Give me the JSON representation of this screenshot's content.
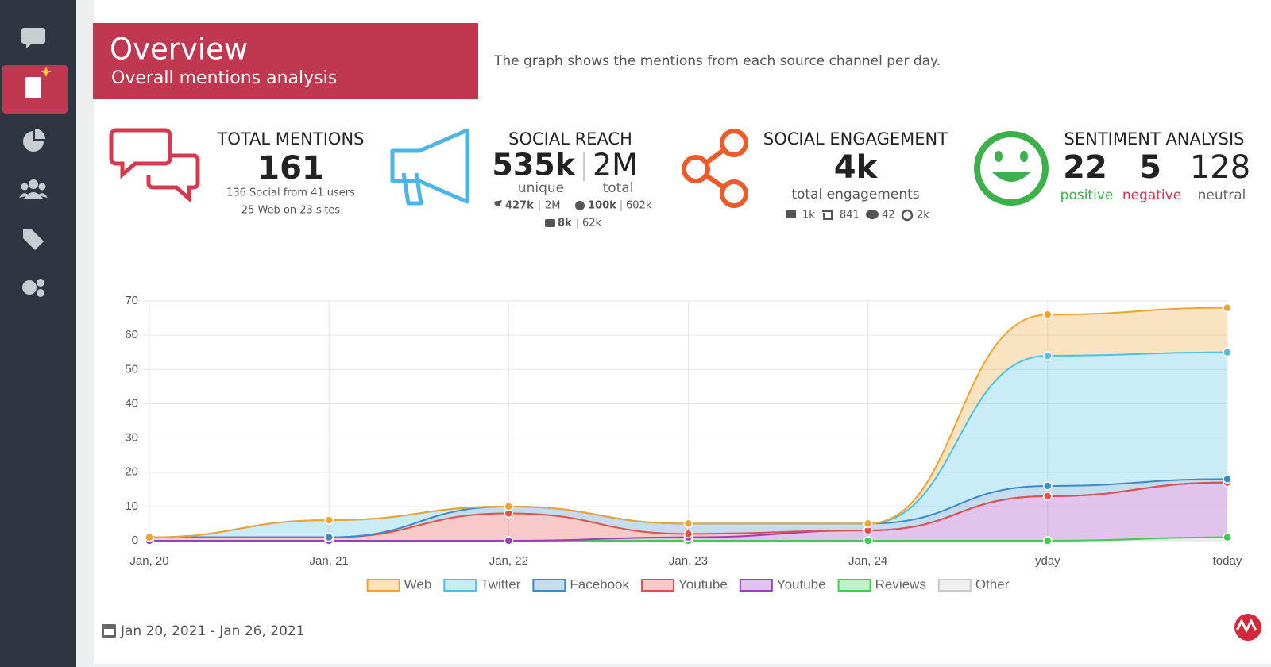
{
  "header": {
    "title": "Overview",
    "subtitle": "Overall mentions analysis",
    "description": "The graph shows the mentions from each source channel per day."
  },
  "kpis": {
    "total_mentions": {
      "title": "TOTAL MENTIONS",
      "value": 161,
      "lines": [
        "136 Social from 41 users",
        "25 Web on 23 sites"
      ]
    },
    "social_reach": {
      "title": "SOCIAL REACH",
      "unique": "535k",
      "unique_label": "unique",
      "total": "2M",
      "total_label": "total",
      "twitter": "427k",
      "twitter_total": "2M",
      "facebook": "100k",
      "facebook_total": "602k",
      "youtube": "8k",
      "youtube_total": "62k"
    },
    "social_engagement": {
      "title": "SOCIAL ENGAGEMENT",
      "value": "4k",
      "label": "total engagements",
      "likes": "1k",
      "shares": 841,
      "comments": 42,
      "views": "2k"
    },
    "sentiment": {
      "title": "SENTIMENT ANALYSIS",
      "positive": 22,
      "positive_label": "positive",
      "negative": 5,
      "negative_label": "negative",
      "neutral": 128,
      "neutral_label": "neutral"
    }
  },
  "chart_data": {
    "type": "area",
    "stacked": true,
    "grid": true,
    "legend": "bottom",
    "categories": [
      "Jan, 20",
      "Jan, 21",
      "Jan, 22",
      "Jan, 23",
      "Jan, 24",
      "yday",
      "today"
    ],
    "series": [
      {
        "name": "Web",
        "color": "#f0a32e",
        "values": [
          0,
          0,
          0,
          0,
          0,
          12,
          13
        ]
      },
      {
        "name": "Twitter",
        "color": "#4dc0e3",
        "values": [
          0,
          5,
          0,
          0,
          0,
          38,
          37
        ]
      },
      {
        "name": "Facebook",
        "color": "#3a8cc6",
        "values": [
          0,
          0,
          2,
          3,
          2,
          3,
          1
        ]
      },
      {
        "name": "Youtube",
        "color": "#e0504a",
        "values": [
          1,
          1,
          8,
          1,
          0,
          0,
          0
        ]
      },
      {
        "name": "Youtube",
        "color": "#9c3dbf",
        "values": [
          0,
          0,
          0,
          1,
          3,
          13,
          16
        ]
      },
      {
        "name": "Reviews",
        "color": "#3ccf4e",
        "values": [
          0,
          0,
          0,
          0,
          0,
          0,
          0
        ]
      },
      {
        "name": "Other",
        "color": "#c9c9c9",
        "values": [
          0,
          0,
          0,
          0,
          0,
          0,
          1
        ]
      }
    ],
    "ylim": [
      0,
      70
    ],
    "yticks": [
      0,
      10,
      20,
      30,
      40,
      50,
      60,
      70
    ]
  },
  "footer": {
    "date_range": "Jan 20, 2021 - Jan 26, 2021"
  }
}
